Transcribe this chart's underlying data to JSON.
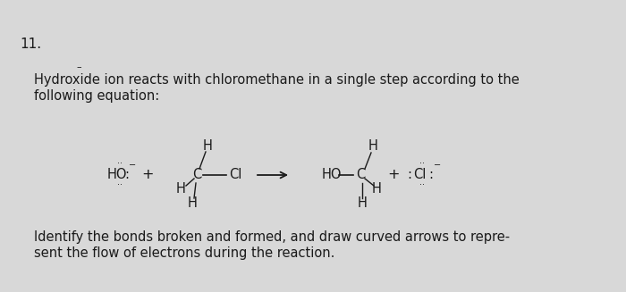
{
  "background_color": "#d8d8d8",
  "number_label": "11.",
  "dash_label": "–",
  "paragraph1": "Hydroxide ion reacts with chloromethane in a single step according to the",
  "paragraph2": "following equation:",
  "paragraph3": "Identify the bonds broken and formed, and draw curved arrows to repre-",
  "paragraph4": "sent the flow of electrons during the reaction.",
  "text_color": "#1a1a1a",
  "font_size_body": 10.5,
  "font_size_number": 11,
  "font_size_chem": 10.5
}
